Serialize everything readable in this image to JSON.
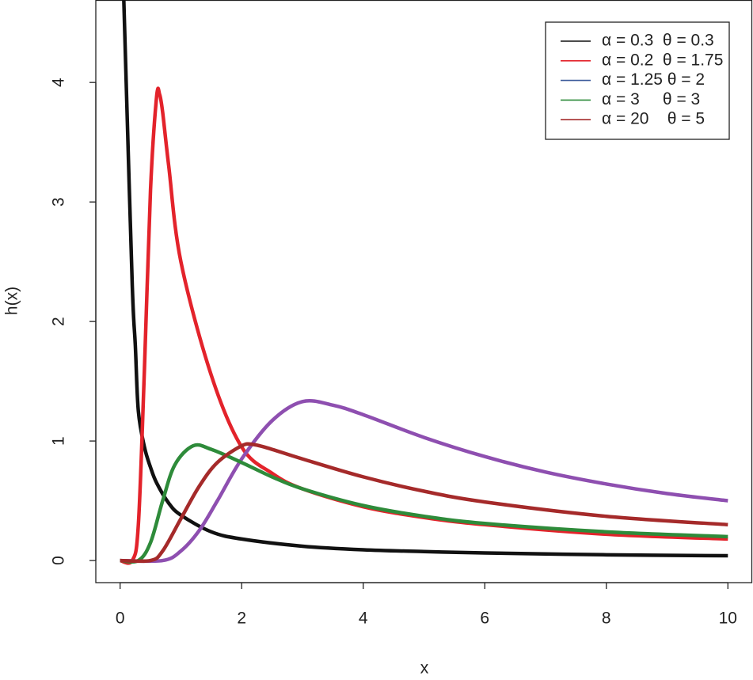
{
  "chart_data": {
    "type": "line",
    "xlabel": "x",
    "ylabel": "h(x)",
    "xlim": [
      -0.4,
      10.4
    ],
    "ylim": [
      -0.185,
      4.69
    ],
    "xticks": [
      0,
      2,
      4,
      6,
      8,
      10
    ],
    "yticks": [
      0,
      1,
      2,
      3,
      4
    ],
    "legend": "top-right",
    "series": [
      {
        "name": "α = 0.3  θ = 0.3",
        "color": "#111111",
        "legend_color": "#111111",
        "x": [
          0.06,
          0.1,
          0.2,
          0.25,
          0.3,
          0.4,
          0.5,
          0.6,
          0.8,
          1,
          1.5,
          2,
          3,
          4,
          5,
          6,
          8,
          10
        ],
        "values": [
          4.7,
          4.0,
          2.3,
          1.8,
          1.25,
          0.95,
          0.78,
          0.65,
          0.48,
          0.38,
          0.24,
          0.18,
          0.12,
          0.09,
          0.075,
          0.063,
          0.048,
          0.04
        ]
      },
      {
        "name": "α = 0.2  θ = 1.75",
        "color": "#e3232b",
        "legend_color": "#e3232b",
        "x": [
          0,
          0.2,
          0.3,
          0.4,
          0.5,
          0.6,
          0.65,
          0.7,
          0.8,
          1,
          1.5,
          2,
          2.5,
          3,
          4,
          5,
          6,
          8,
          10
        ],
        "values": [
          0,
          0,
          0.3,
          1.6,
          3.1,
          3.88,
          3.9,
          3.75,
          3.3,
          2.5,
          1.55,
          0.95,
          0.73,
          0.6,
          0.45,
          0.36,
          0.3,
          0.22,
          0.18
        ]
      },
      {
        "name": "α = 1.25 θ = 2",
        "color": "#8e4fb0",
        "legend_color": "#3b5a9a",
        "x": [
          0,
          0.7,
          1,
          1.3,
          1.6,
          2,
          2.5,
          3,
          3.5,
          4,
          5,
          6,
          7,
          8,
          9,
          10
        ],
        "values": [
          0,
          0,
          0.08,
          0.25,
          0.5,
          0.85,
          1.17,
          1.33,
          1.3,
          1.22,
          1.03,
          0.87,
          0.74,
          0.64,
          0.56,
          0.5
        ]
      },
      {
        "name": "α = 3     θ = 3",
        "color": "#2e8b3a",
        "legend_color": "#2e8b3a",
        "x": [
          0,
          0.3,
          0.5,
          0.7,
          0.9,
          1.2,
          1.5,
          2,
          2.5,
          3,
          4,
          5,
          6,
          8,
          10
        ],
        "values": [
          0,
          0,
          0.15,
          0.5,
          0.8,
          0.96,
          0.93,
          0.82,
          0.7,
          0.6,
          0.46,
          0.37,
          0.31,
          0.24,
          0.2
        ]
      },
      {
        "name": "α = 20    θ = 5",
        "color": "#a52a2a",
        "legend_color": "#a52a2a",
        "x": [
          0,
          0.5,
          0.7,
          1,
          1.3,
          1.6,
          2,
          2.2,
          2.5,
          3,
          4,
          5,
          6,
          8,
          10
        ],
        "values": [
          0,
          0,
          0.08,
          0.35,
          0.62,
          0.82,
          0.96,
          0.97,
          0.93,
          0.85,
          0.7,
          0.58,
          0.49,
          0.37,
          0.3
        ]
      }
    ]
  }
}
